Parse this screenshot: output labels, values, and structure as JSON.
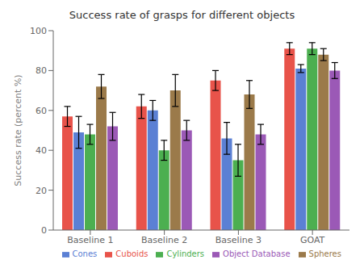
{
  "chart_data": {
    "type": "bar",
    "title": "Success rate of grasps for different objects",
    "ylabel": "Success rate (percent %)",
    "categories": [
      "Baseline 1",
      "Baseline 2",
      "Baseline 3",
      "GOAT"
    ],
    "series": [
      {
        "name": "Cuboids",
        "color": "#e8534a",
        "values": [
          57,
          62,
          75,
          91
        ],
        "errors": [
          5,
          6,
          5,
          3
        ]
      },
      {
        "name": "Cones",
        "color": "#5b80d4",
        "values": [
          49,
          60,
          46,
          81
        ],
        "errors": [
          8,
          5,
          8,
          2
        ]
      },
      {
        "name": "Cylinders",
        "color": "#4caf50",
        "values": [
          48,
          40,
          35,
          91
        ],
        "errors": [
          5,
          5,
          8,
          3
        ]
      },
      {
        "name": "Spheres",
        "color": "#9b7a4a",
        "values": [
          72,
          70,
          68,
          88
        ],
        "errors": [
          6,
          8,
          7,
          3
        ]
      },
      {
        "name": "Object Database",
        "color": "#9b59b6",
        "values": [
          52,
          50,
          48,
          80
        ],
        "errors": [
          7,
          5,
          5,
          4
        ]
      }
    ],
    "ylim": [
      0,
      100
    ],
    "yticks": [
      0,
      20,
      40,
      60,
      80,
      100
    ],
    "legend": "lower right",
    "grid": false
  }
}
